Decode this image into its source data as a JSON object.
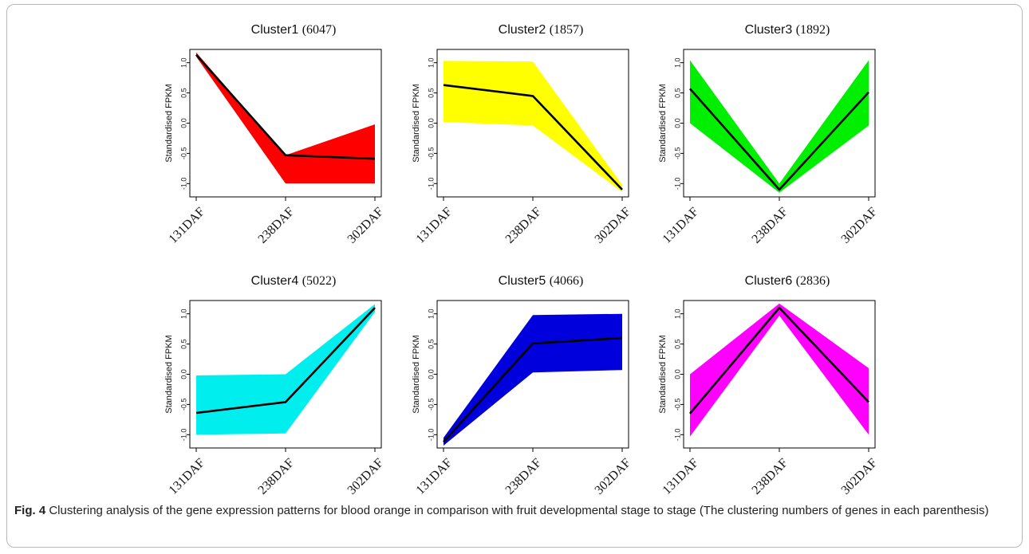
{
  "caption": {
    "label": "Fig. 4",
    "text": "Clustering analysis of the gene expression patterns for blood orange in comparison with fruit developmental stage to stage (The clustering numbers of genes in each parenthesis)"
  },
  "chart_data": [
    {
      "type": "area",
      "title": "Cluster1",
      "count": "(6047)",
      "ylabel": "Standardised FPKM",
      "categories": [
        "131DAF",
        "238DAF",
        "302DAF"
      ],
      "yticks": [
        "1.0",
        "0.5",
        "0.0",
        "-0.5",
        "-1.0"
      ],
      "ylim": [
        -1.22,
        1.22
      ],
      "fill_color": "#ff0000",
      "band_upper": [
        1.17,
        -0.53,
        -0.02
      ],
      "band_lower": [
        1.1,
        -1.0,
        -1.0
      ],
      "mean": [
        1.13,
        -0.53,
        -0.59
      ]
    },
    {
      "type": "area",
      "title": "Cluster2",
      "count": "(1857)",
      "ylabel": "Standardised FPKM",
      "categories": [
        "131DAF",
        "238DAF",
        "302DAF"
      ],
      "yticks": [
        "1.0",
        "0.5",
        "0.0",
        "-0.5",
        "-1.0"
      ],
      "ylim": [
        -1.22,
        1.22
      ],
      "fill_color": "#ffff00",
      "band_upper": [
        1.03,
        1.02,
        -1.02
      ],
      "band_lower": [
        0.02,
        -0.04,
        -1.14
      ],
      "mean": [
        0.63,
        0.45,
        -1.1
      ]
    },
    {
      "type": "area",
      "title": "Cluster3",
      "count": "(1892)",
      "ylabel": "Standardised FPKM",
      "categories": [
        "131DAF",
        "238DAF",
        "302DAF"
      ],
      "yticks": [
        "1.0",
        "0.5",
        "0.0",
        "-0.5",
        "-1.0"
      ],
      "ylim": [
        -1.22,
        1.22
      ],
      "fill_color": "#00ee00",
      "band_upper": [
        1.04,
        -1.0,
        1.04
      ],
      "band_lower": [
        0.0,
        -1.15,
        -0.04
      ],
      "mean": [
        0.57,
        -1.1,
        0.51
      ]
    },
    {
      "type": "area",
      "title": "Cluster4",
      "count": "(5022)",
      "ylabel": "Standardised FPKM",
      "categories": [
        "131DAF",
        "238DAF",
        "302DAF"
      ],
      "yticks": [
        "1.0",
        "0.5",
        "0.0",
        "-0.5",
        "-1.0"
      ],
      "ylim": [
        -1.22,
        1.22
      ],
      "fill_color": "#00eeee",
      "band_upper": [
        -0.02,
        0.0,
        1.16
      ],
      "band_lower": [
        -1.0,
        -0.98,
        1.03
      ],
      "mean": [
        -0.64,
        -0.46,
        1.1
      ]
    },
    {
      "type": "area",
      "title": "Cluster5",
      "count": "(4066)",
      "ylabel": "Standardised FPKM",
      "categories": [
        "131DAF",
        "238DAF",
        "302DAF"
      ],
      "yticks": [
        "1.0",
        "0.5",
        "0.0",
        "-0.5",
        "-1.0"
      ],
      "ylim": [
        -1.22,
        1.22
      ],
      "fill_color": "#0000dd",
      "band_upper": [
        -1.05,
        0.98,
        1.0
      ],
      "band_lower": [
        -1.18,
        0.03,
        0.07
      ],
      "mean": [
        -1.12,
        0.51,
        0.6
      ]
    },
    {
      "type": "area",
      "title": "Cluster6",
      "count": "(2836)",
      "ylabel": "Standardised FPKM",
      "categories": [
        "131DAF",
        "238DAF",
        "302DAF"
      ],
      "yticks": [
        "1.0",
        "0.5",
        "0.0",
        "-0.5",
        "-1.0"
      ],
      "ylim": [
        -1.22,
        1.22
      ],
      "fill_color": "#ff00ff",
      "band_upper": [
        0.0,
        1.17,
        0.1
      ],
      "band_lower": [
        -1.03,
        0.97,
        -1.0
      ],
      "mean": [
        -0.65,
        1.1,
        -0.46
      ]
    }
  ]
}
